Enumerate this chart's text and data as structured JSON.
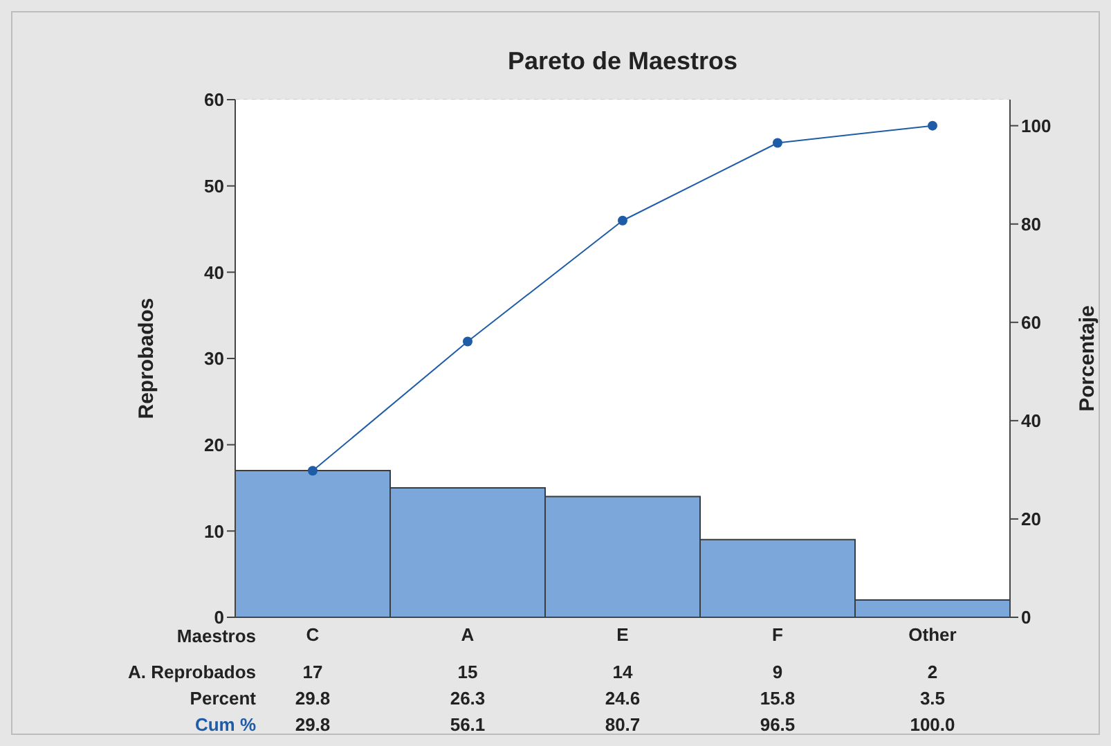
{
  "chart_data": {
    "type": "bar",
    "title": "Pareto de Maestros",
    "xlabel": "Maestros",
    "ylabel": "Reprobados",
    "y2label": "Porcentaje",
    "categories": [
      "C",
      "A",
      "E",
      "F",
      "Other"
    ],
    "series": [
      {
        "name": "A. Reprobados",
        "color": "#7ba7da",
        "values": [
          17,
          15,
          14,
          9,
          2
        ]
      },
      {
        "name": "Cum %",
        "type": "line",
        "axis": "y2",
        "color": "#1f5ca8",
        "values": [
          29.8,
          56.1,
          80.7,
          96.5,
          100.0
        ],
        "value_labels": [
          "29.8",
          "56.1",
          "80.7",
          "96.5",
          "100.0"
        ]
      }
    ],
    "ylim": [
      0,
      60
    ],
    "yticks": [
      0,
      10,
      20,
      30,
      40,
      50,
      60
    ],
    "y2lim": [
      0,
      105.3
    ],
    "y2ticks": [
      0,
      20,
      40,
      60,
      80,
      100
    ],
    "annotations": [
      "Percent",
      "29.8",
      "26.3",
      "24.6",
      "15.8",
      "3.5"
    ],
    "grid": "y2",
    "marker": "circle",
    "data_labels": true
  }
}
